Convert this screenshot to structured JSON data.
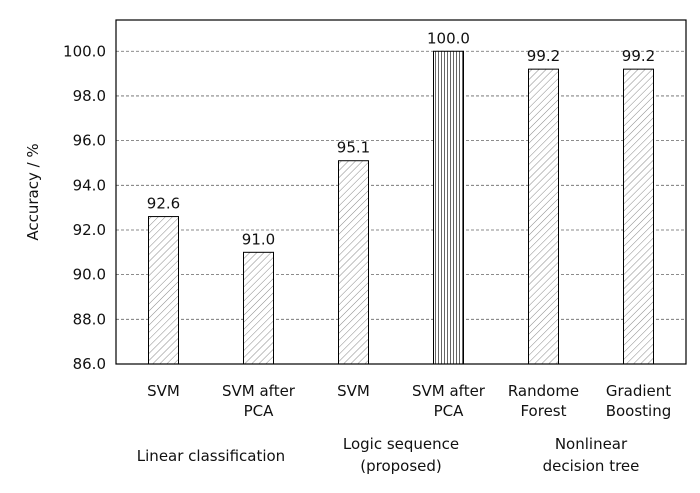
{
  "chart_data": {
    "type": "bar",
    "ylabel": "Accuracy / %",
    "ylim": [
      86.0,
      101.4
    ],
    "yticks": [
      "86.0",
      "88.0",
      "90.0",
      "92.0",
      "94.0",
      "96.0",
      "98.0",
      "100.0"
    ],
    "categories": [
      [
        "SVM"
      ],
      [
        "SVM after",
        "PCA"
      ],
      [
        "SVM"
      ],
      [
        "SVM after",
        "PCA"
      ],
      [
        "Randome",
        "Forest"
      ],
      [
        "Gradient",
        "Boosting"
      ]
    ],
    "values": [
      92.6,
      91.0,
      95.1,
      100.0,
      99.2,
      99.2
    ],
    "value_labels": [
      "92.6",
      "91.0",
      "95.1",
      "100.0",
      "99.2",
      "99.2"
    ],
    "bar_patterns": [
      "diagonal",
      "diagonal",
      "diagonal",
      "vertical",
      "diagonal",
      "diagonal"
    ],
    "groups": [
      [
        "Linear classification"
      ],
      [
        "Logic sequence",
        "(proposed)"
      ],
      [
        "Nonlinear",
        "decision tree"
      ]
    ],
    "grid": true,
    "gridline_style": "dashed",
    "legend": "none"
  }
}
